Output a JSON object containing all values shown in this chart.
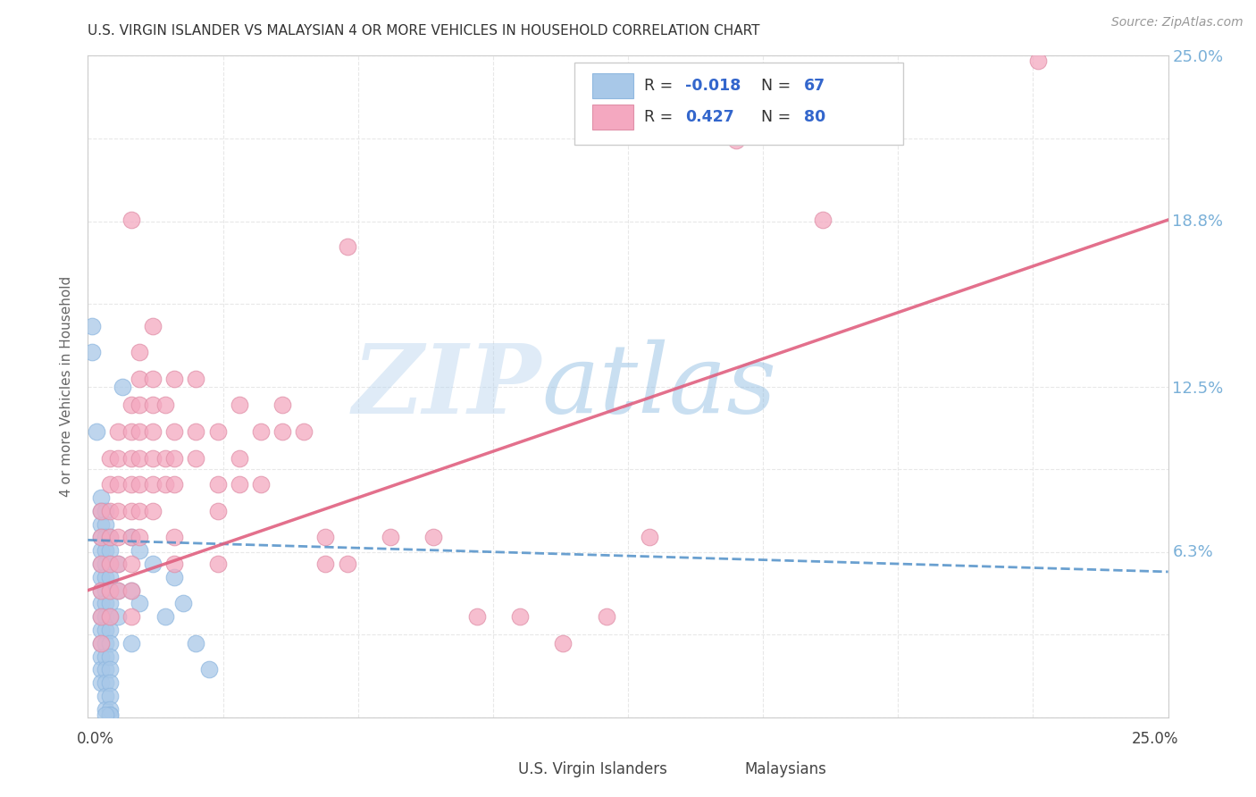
{
  "title": "U.S. VIRGIN ISLANDER VS MALAYSIAN 4 OR MORE VEHICLES IN HOUSEHOLD CORRELATION CHART",
  "source": "Source: ZipAtlas.com",
  "ylabel": "4 or more Vehicles in Household",
  "xmin": 0.0,
  "xmax": 0.25,
  "ymin": 0.0,
  "ymax": 0.25,
  "watermark_zip": "ZIP",
  "watermark_atlas": "atlas",
  "blue_color": "#a8c8e8",
  "pink_color": "#f4a8c0",
  "blue_line_color": "#5090c8",
  "pink_line_color": "#e06080",
  "grid_color": "#e8e8e8",
  "background_color": "#ffffff",
  "right_tick_color": "#7ab0d8",
  "blue_line_start_y": 0.067,
  "blue_line_end_y": 0.055,
  "pink_line_start_y": 0.048,
  "pink_line_end_y": 0.188,
  "blue_points": [
    [
      0.001,
      0.148
    ],
    [
      0.001,
      0.138
    ],
    [
      0.002,
      0.108
    ],
    [
      0.003,
      0.083
    ],
    [
      0.003,
      0.078
    ],
    [
      0.003,
      0.073
    ],
    [
      0.003,
      0.068
    ],
    [
      0.003,
      0.063
    ],
    [
      0.003,
      0.058
    ],
    [
      0.003,
      0.053
    ],
    [
      0.003,
      0.048
    ],
    [
      0.003,
      0.043
    ],
    [
      0.003,
      0.038
    ],
    [
      0.003,
      0.033
    ],
    [
      0.003,
      0.028
    ],
    [
      0.003,
      0.023
    ],
    [
      0.003,
      0.018
    ],
    [
      0.003,
      0.013
    ],
    [
      0.004,
      0.078
    ],
    [
      0.004,
      0.073
    ],
    [
      0.004,
      0.068
    ],
    [
      0.004,
      0.063
    ],
    [
      0.004,
      0.058
    ],
    [
      0.004,
      0.053
    ],
    [
      0.004,
      0.048
    ],
    [
      0.004,
      0.043
    ],
    [
      0.004,
      0.038
    ],
    [
      0.004,
      0.033
    ],
    [
      0.004,
      0.028
    ],
    [
      0.004,
      0.023
    ],
    [
      0.004,
      0.018
    ],
    [
      0.004,
      0.013
    ],
    [
      0.004,
      0.008
    ],
    [
      0.004,
      0.003
    ],
    [
      0.005,
      0.068
    ],
    [
      0.005,
      0.063
    ],
    [
      0.005,
      0.058
    ],
    [
      0.005,
      0.053
    ],
    [
      0.005,
      0.048
    ],
    [
      0.005,
      0.043
    ],
    [
      0.005,
      0.038
    ],
    [
      0.005,
      0.033
    ],
    [
      0.005,
      0.028
    ],
    [
      0.005,
      0.023
    ],
    [
      0.005,
      0.018
    ],
    [
      0.005,
      0.013
    ],
    [
      0.005,
      0.008
    ],
    [
      0.005,
      0.003
    ],
    [
      0.005,
      0.001
    ],
    [
      0.007,
      0.058
    ],
    [
      0.007,
      0.048
    ],
    [
      0.007,
      0.038
    ],
    [
      0.008,
      0.125
    ],
    [
      0.01,
      0.068
    ],
    [
      0.01,
      0.048
    ],
    [
      0.01,
      0.028
    ],
    [
      0.012,
      0.063
    ],
    [
      0.012,
      0.043
    ],
    [
      0.015,
      0.058
    ],
    [
      0.018,
      0.038
    ],
    [
      0.02,
      0.053
    ],
    [
      0.022,
      0.043
    ],
    [
      0.025,
      0.028
    ],
    [
      0.028,
      0.018
    ],
    [
      0.005,
      0.001
    ],
    [
      0.004,
      0.001
    ]
  ],
  "pink_points": [
    [
      0.003,
      0.078
    ],
    [
      0.003,
      0.068
    ],
    [
      0.003,
      0.058
    ],
    [
      0.003,
      0.048
    ],
    [
      0.003,
      0.038
    ],
    [
      0.003,
      0.028
    ],
    [
      0.005,
      0.098
    ],
    [
      0.005,
      0.088
    ],
    [
      0.005,
      0.078
    ],
    [
      0.005,
      0.068
    ],
    [
      0.005,
      0.058
    ],
    [
      0.005,
      0.048
    ],
    [
      0.005,
      0.038
    ],
    [
      0.007,
      0.108
    ],
    [
      0.007,
      0.098
    ],
    [
      0.007,
      0.088
    ],
    [
      0.007,
      0.078
    ],
    [
      0.007,
      0.068
    ],
    [
      0.007,
      0.058
    ],
    [
      0.007,
      0.048
    ],
    [
      0.01,
      0.188
    ],
    [
      0.01,
      0.118
    ],
    [
      0.01,
      0.108
    ],
    [
      0.01,
      0.098
    ],
    [
      0.01,
      0.088
    ],
    [
      0.01,
      0.078
    ],
    [
      0.01,
      0.068
    ],
    [
      0.01,
      0.058
    ],
    [
      0.01,
      0.048
    ],
    [
      0.01,
      0.038
    ],
    [
      0.012,
      0.138
    ],
    [
      0.012,
      0.128
    ],
    [
      0.012,
      0.118
    ],
    [
      0.012,
      0.108
    ],
    [
      0.012,
      0.098
    ],
    [
      0.012,
      0.088
    ],
    [
      0.012,
      0.078
    ],
    [
      0.012,
      0.068
    ],
    [
      0.015,
      0.148
    ],
    [
      0.015,
      0.128
    ],
    [
      0.015,
      0.118
    ],
    [
      0.015,
      0.108
    ],
    [
      0.015,
      0.098
    ],
    [
      0.015,
      0.088
    ],
    [
      0.015,
      0.078
    ],
    [
      0.018,
      0.118
    ],
    [
      0.018,
      0.098
    ],
    [
      0.018,
      0.088
    ],
    [
      0.02,
      0.128
    ],
    [
      0.02,
      0.108
    ],
    [
      0.02,
      0.098
    ],
    [
      0.02,
      0.088
    ],
    [
      0.02,
      0.068
    ],
    [
      0.02,
      0.058
    ],
    [
      0.025,
      0.128
    ],
    [
      0.025,
      0.108
    ],
    [
      0.025,
      0.098
    ],
    [
      0.03,
      0.108
    ],
    [
      0.03,
      0.088
    ],
    [
      0.03,
      0.078
    ],
    [
      0.03,
      0.058
    ],
    [
      0.035,
      0.118
    ],
    [
      0.035,
      0.098
    ],
    [
      0.035,
      0.088
    ],
    [
      0.04,
      0.108
    ],
    [
      0.04,
      0.088
    ],
    [
      0.045,
      0.118
    ],
    [
      0.045,
      0.108
    ],
    [
      0.05,
      0.108
    ],
    [
      0.055,
      0.068
    ],
    [
      0.055,
      0.058
    ],
    [
      0.06,
      0.058
    ],
    [
      0.07,
      0.068
    ],
    [
      0.08,
      0.068
    ],
    [
      0.09,
      0.038
    ],
    [
      0.1,
      0.038
    ],
    [
      0.11,
      0.028
    ],
    [
      0.12,
      0.038
    ],
    [
      0.13,
      0.068
    ],
    [
      0.15,
      0.218
    ],
    [
      0.17,
      0.188
    ],
    [
      0.22,
      0.248
    ],
    [
      0.06,
      0.178
    ]
  ]
}
